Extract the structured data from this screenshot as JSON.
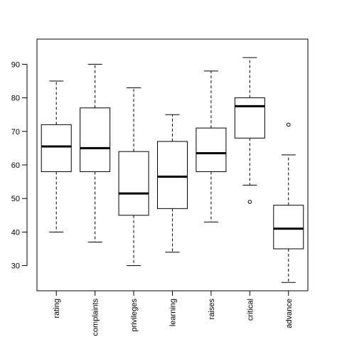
{
  "chart_data": {
    "type": "boxplot",
    "categories": [
      "rating",
      "complaints",
      "privileges",
      "learning",
      "raises",
      "critical",
      "advance"
    ],
    "boxes": [
      {
        "name": "rating",
        "whisker_low": 40,
        "q1": 58,
        "median": 65.5,
        "q3": 72,
        "whisker_high": 85,
        "outliers": []
      },
      {
        "name": "complaints",
        "whisker_low": 37,
        "q1": 58,
        "median": 65,
        "q3": 77,
        "whisker_high": 90,
        "outliers": []
      },
      {
        "name": "privileges",
        "whisker_low": 30,
        "q1": 45,
        "median": 51.5,
        "q3": 64,
        "whisker_high": 83,
        "outliers": []
      },
      {
        "name": "learning",
        "whisker_low": 34,
        "q1": 47,
        "median": 56.5,
        "q3": 67,
        "whisker_high": 75,
        "outliers": []
      },
      {
        "name": "raises",
        "whisker_low": 43,
        "q1": 58,
        "median": 63.5,
        "q3": 71,
        "whisker_high": 88,
        "outliers": []
      },
      {
        "name": "critical",
        "whisker_low": 54,
        "q1": 68,
        "median": 77.5,
        "q3": 80,
        "whisker_high": 92,
        "outliers": [
          49
        ]
      },
      {
        "name": "advance",
        "whisker_low": 25,
        "q1": 35,
        "median": 41,
        "q3": 48,
        "whisker_high": 63,
        "outliers": [
          72
        ]
      }
    ],
    "y_ticks": [
      30,
      40,
      50,
      60,
      70,
      80,
      90
    ],
    "ylim": [
      22.5,
      97.5
    ],
    "title": "",
    "xlabel": "",
    "ylabel": "",
    "grid": false,
    "colors": {
      "box_fill": "#ffffff",
      "stroke": "#000000",
      "median": "#000000"
    }
  }
}
